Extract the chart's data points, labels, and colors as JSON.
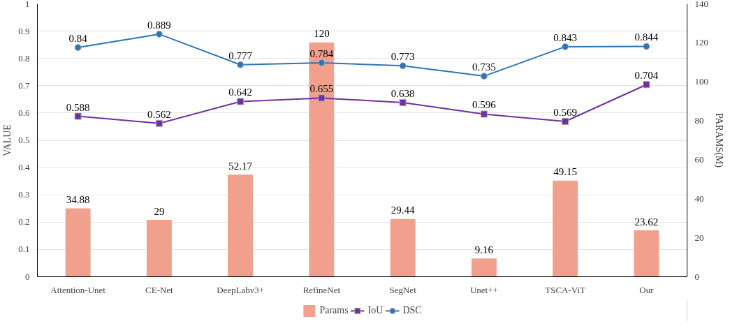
{
  "chart_data": {
    "type": "bar",
    "ylabel": "VALUE",
    "y2label": "PARAMS(M)",
    "categories": [
      "Attention-Unet",
      "CE-Net",
      "DeepLabv3+",
      "RefineNet",
      "SegNet",
      "Unet++",
      "TSCA-ViT",
      "Our"
    ],
    "series": [
      {
        "name": "Params",
        "axis": "y2",
        "color": "#f0a08c",
        "values": [
          34.88,
          29,
          52.17,
          120,
          29.44,
          9.16,
          49.15,
          23.62
        ]
      },
      {
        "name": "IoU",
        "type": "line",
        "marker": "square",
        "color": "#7030a0",
        "values": [
          0.588,
          0.562,
          0.642,
          0.655,
          0.638,
          0.596,
          0.569,
          0.704
        ]
      },
      {
        "name": "DSC",
        "type": "line",
        "marker": "circle",
        "color": "#2e75b6",
        "values": [
          0.84,
          0.889,
          0.777,
          0.784,
          0.773,
          0.735,
          0.843,
          0.844
        ]
      }
    ],
    "ylim": [
      0,
      1
    ],
    "yticks": [
      0,
      0.1,
      0.2,
      0.3,
      0.4,
      0.5,
      0.6,
      0.7,
      0.8,
      0.9,
      1
    ],
    "y2lim": [
      0,
      140
    ],
    "y2ticks": [
      0,
      20,
      40,
      60,
      80,
      100,
      120,
      140
    ],
    "grid": "y",
    "legend": "bottom",
    "data_labels": true
  }
}
